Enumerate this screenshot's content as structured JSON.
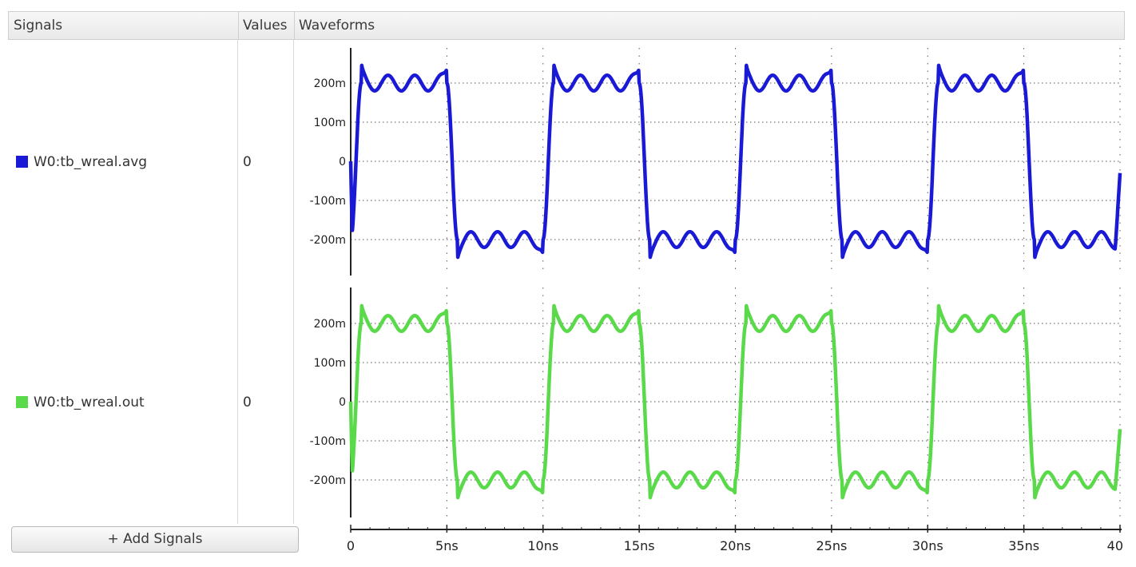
{
  "header": {
    "signals": "Signals",
    "values": "Values",
    "waveforms": "Waveforms"
  },
  "signals": [
    {
      "name": "W0:tb_wreal.avg",
      "value": "0",
      "color": "#1a1ad6"
    },
    {
      "name": "W0:tb_wreal.out",
      "value": "0",
      "color": "#5ad94a"
    }
  ],
  "add_signals_label": "+ Add Signals",
  "chart_data": [
    {
      "type": "line",
      "series": [
        {
          "name": "W0:tb_wreal.avg",
          "color": "#1a1ad6"
        }
      ],
      "ylim": [
        -0.28,
        0.28
      ],
      "yticks": [
        0.2,
        0.1,
        0,
        -0.1,
        -0.2
      ],
      "ytick_labels": [
        "200m",
        "100m",
        "0",
        "-100m",
        "-200m"
      ],
      "xlim": [
        0,
        40
      ],
      "waveform": {
        "shape": "square",
        "period_ns": 10,
        "high_level": 0.2,
        "low_level": -0.2,
        "ripple_amplitude": 0.02,
        "overshoot_peak": 0.23,
        "start_value": 0,
        "end_value": -0.03
      }
    },
    {
      "type": "line",
      "series": [
        {
          "name": "W0:tb_wreal.out",
          "color": "#5ad94a"
        }
      ],
      "ylim": [
        -0.28,
        0.28
      ],
      "yticks": [
        0.2,
        0.1,
        0,
        -0.1,
        -0.2
      ],
      "ytick_labels": [
        "200m",
        "100m",
        "0",
        "-100m",
        "-200m"
      ],
      "xlim": [
        0,
        40
      ],
      "waveform": {
        "shape": "square",
        "period_ns": 10,
        "high_level": 0.2,
        "low_level": -0.2,
        "ripple_amplitude": 0.02,
        "overshoot_peak": 0.23,
        "start_value": 0,
        "end_value": -0.07
      }
    }
  ],
  "time_axis": {
    "ticks": [
      0,
      5,
      10,
      15,
      20,
      25,
      30,
      35,
      40
    ],
    "tick_labels": [
      "0",
      "5ns",
      "10ns",
      "15ns",
      "20ns",
      "25ns",
      "30ns",
      "35ns",
      "40"
    ]
  }
}
